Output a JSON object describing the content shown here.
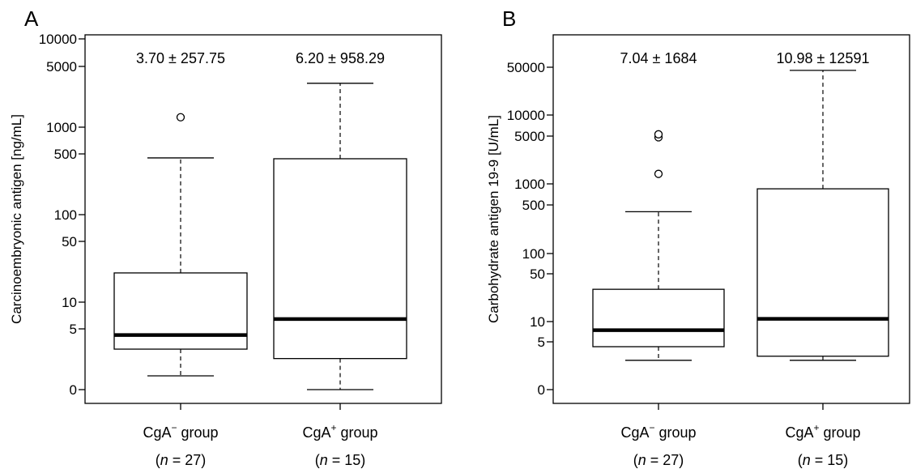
{
  "chart_data": [
    {
      "type": "boxplot",
      "panel": "A",
      "ylabel": "Carcinoembryonic antigen [ng/mL]",
      "yscale": "log",
      "ylim": [
        0,
        10000
      ],
      "yticks": [
        0,
        5,
        10,
        50,
        100,
        500,
        1000,
        5000,
        10000
      ],
      "ytick_labels": [
        "0",
        "5",
        "10",
        "50",
        "100",
        "500",
        "1000",
        "5000",
        "10000"
      ],
      "groups": [
        {
          "label_main": "CgA",
          "label_sup": "−",
          "label_rest": " group",
          "n_label": "(n = 27)",
          "n_prefix": "(",
          "n_var": "n",
          "n_suffix": " = 27)",
          "stat": "3.70 ± 257.75",
          "whisker_low": 0.5,
          "q1": 2.3,
          "median": 4,
          "q3": 22,
          "whisker_high": 450,
          "outliers": [
            1300
          ]
        },
        {
          "label_main": "CgA",
          "label_sup": "+",
          "label_rest": " group",
          "n_label": "(n = 15)",
          "n_prefix": "(",
          "n_var": "n",
          "n_suffix": " = 15)",
          "stat": "6.20 ± 958.29",
          "whisker_low": 0,
          "q1": 1.5,
          "median": 6.5,
          "q3": 440,
          "whisker_high": 3200,
          "outliers": []
        }
      ]
    },
    {
      "type": "boxplot",
      "panel": "B",
      "ylabel": "Carbohydrate antigen 19-9 [U/mL]",
      "yscale": "log",
      "ylim": [
        0,
        100000
      ],
      "yticks": [
        0,
        5,
        10,
        50,
        100,
        500,
        1000,
        5000,
        10000,
        50000
      ],
      "ytick_labels": [
        "0",
        "5",
        "10",
        "50",
        "100",
        "500",
        "1000",
        "5000",
        "10000",
        "50000"
      ],
      "groups": [
        {
          "label_main": "CgA",
          "label_sup": "−",
          "label_rest": " group",
          "n_label": "(n = 27)",
          "n_prefix": "(",
          "n_var": "n",
          "n_suffix": " = 27)",
          "stat": "7.04 ± 1684",
          "whisker_low": 2,
          "q1": 4,
          "median": 7.5,
          "q3": 30,
          "whisker_high": 400,
          "outliers": [
            1400,
            4800,
            5300
          ]
        },
        {
          "label_main": "CgA",
          "label_sup": "+",
          "label_rest": " group",
          "n_label": "(n = 15)",
          "n_prefix": "(",
          "n_var": "n",
          "n_suffix": " = 15)",
          "stat": "10.98 ± 12591",
          "whisker_low": 2,
          "q1": 2.5,
          "median": 11,
          "q3": 850,
          "whisker_high": 45000,
          "outliers": []
        }
      ]
    }
  ]
}
